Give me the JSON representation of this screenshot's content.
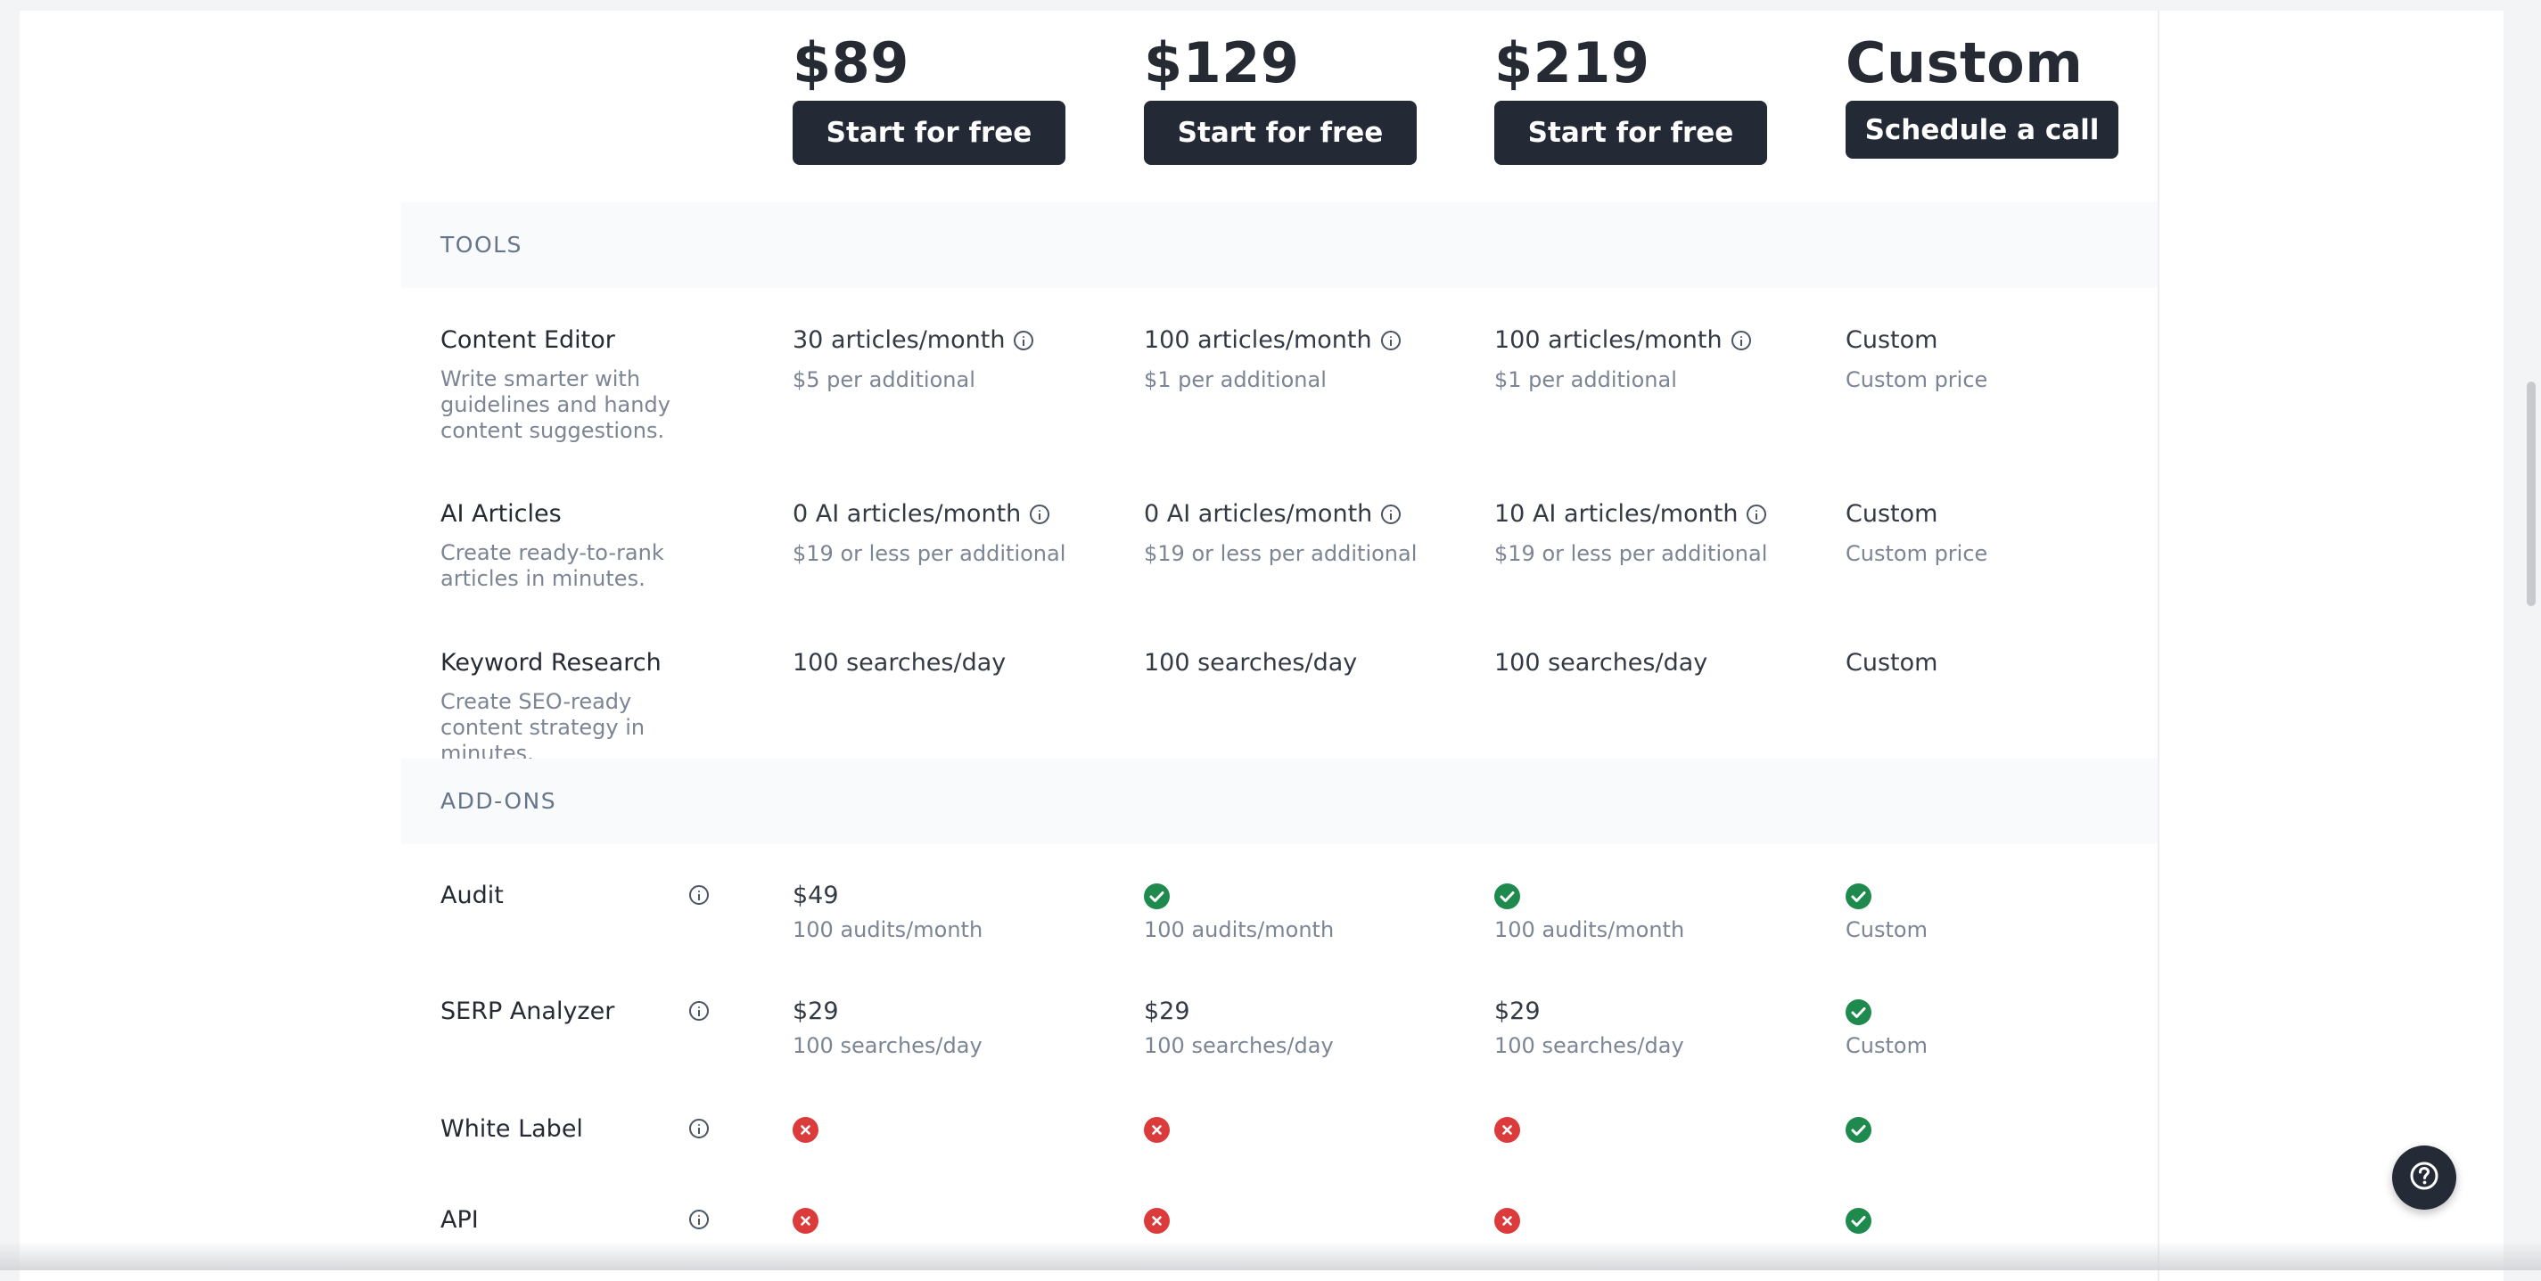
{
  "plans": [
    {
      "price": "$89",
      "button": "Start for free"
    },
    {
      "price": "$129",
      "button": "Start for free"
    },
    {
      "price": "$219",
      "button": "Start for free"
    },
    {
      "price": "Custom",
      "button": "Schedule a call"
    }
  ],
  "sections": {
    "tools": "TOOLS",
    "addons": "ADD-ONS"
  },
  "tools": [
    {
      "name": "Content Editor",
      "desc": "Write smarter with guidelines and handy content suggestions.",
      "cells": [
        {
          "main": "30 articles/month",
          "info": true,
          "sub": "$5 per additional"
        },
        {
          "main": "100 articles/month",
          "info": true,
          "sub": "$1 per additional"
        },
        {
          "main": "100 articles/month",
          "info": true,
          "sub": "$1 per additional"
        },
        {
          "main": "Custom",
          "info": false,
          "sub": "Custom price"
        }
      ]
    },
    {
      "name": "AI Articles",
      "desc": "Create ready-to-rank articles in minutes.",
      "cells": [
        {
          "main": "0 AI articles/month",
          "info": true,
          "sub": "$19 or less per additional"
        },
        {
          "main": "0 AI articles/month",
          "info": true,
          "sub": "$19 or less per additional"
        },
        {
          "main": "10 AI articles/month",
          "info": true,
          "sub": "$19 or less per additional"
        },
        {
          "main": "Custom",
          "info": false,
          "sub": "Custom price"
        }
      ]
    },
    {
      "name": "Keyword Research",
      "desc": "Create SEO-ready content strategy in minutes.",
      "cells": [
        {
          "main": "100 searches/day",
          "info": false,
          "sub": ""
        },
        {
          "main": "100 searches/day",
          "info": false,
          "sub": ""
        },
        {
          "main": "100 searches/day",
          "info": false,
          "sub": ""
        },
        {
          "main": "Custom",
          "info": false,
          "sub": ""
        }
      ]
    }
  ],
  "addons": [
    {
      "name": "Audit",
      "cells": [
        {
          "type": "text",
          "main": "$49",
          "sub": "100 audits/month"
        },
        {
          "type": "check",
          "sub": "100 audits/month"
        },
        {
          "type": "check",
          "sub": "100 audits/month"
        },
        {
          "type": "check",
          "sub": "Custom"
        }
      ]
    },
    {
      "name": "SERP Analyzer",
      "cells": [
        {
          "type": "text",
          "main": "$29",
          "sub": "100 searches/day"
        },
        {
          "type": "text",
          "main": "$29",
          "sub": "100 searches/day"
        },
        {
          "type": "text",
          "main": "$29",
          "sub": "100 searches/day"
        },
        {
          "type": "check",
          "sub": "Custom"
        }
      ]
    },
    {
      "name": "White Label",
      "cells": [
        {
          "type": "cross"
        },
        {
          "type": "cross"
        },
        {
          "type": "cross"
        },
        {
          "type": "check"
        }
      ]
    },
    {
      "name": "API",
      "cells": [
        {
          "type": "cross"
        },
        {
          "type": "cross"
        },
        {
          "type": "cross"
        },
        {
          "type": "check"
        }
      ]
    }
  ],
  "icons": {
    "info": "info-circle-icon",
    "check": "check-circle-icon",
    "cross": "x-circle-icon",
    "help": "question-mark-icon"
  },
  "colors": {
    "button_bg": "#232a35",
    "check": "#1f8a4d",
    "cross": "#db3b3b",
    "section_bg": "#f9fafb"
  }
}
